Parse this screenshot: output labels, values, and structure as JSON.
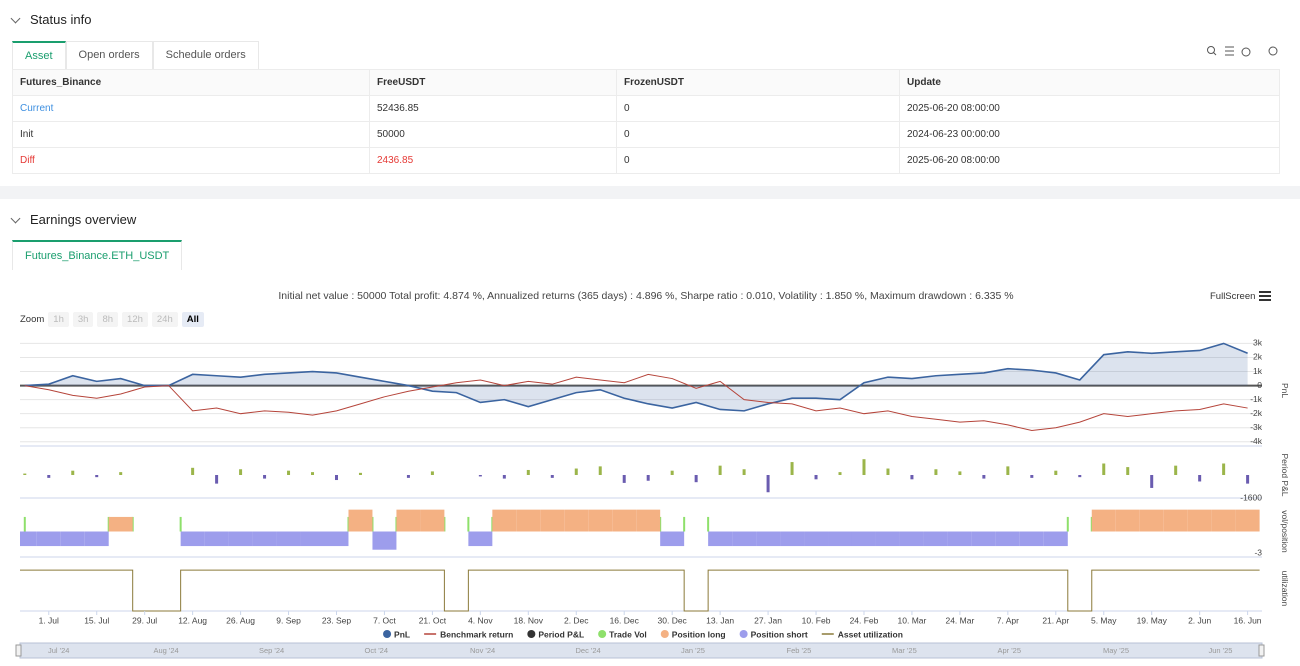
{
  "status": {
    "title": "Status info",
    "tabs": [
      "Asset",
      "Open orders",
      "Schedule orders"
    ],
    "table": {
      "header": [
        "Futures_Binance",
        "FreeUSDT",
        "FrozenUSDT",
        "Update"
      ],
      "rows": [
        [
          "Current",
          "52436.85",
          "0",
          "2025-06-20 08:00:00"
        ],
        [
          "Init",
          "50000",
          "0",
          "2024-06-23 00:00:00"
        ],
        [
          "Diff",
          "2436.85",
          "0",
          "2025-06-20 08:00:00"
        ]
      ]
    }
  },
  "earnings": {
    "title": "Earnings overview",
    "tab": "Futures_Binance.ETH_USDT",
    "summary": "Initial net value : 50000 Total profit: 4.874 %, Annualized returns (365 days) : 4.896 %, Sharpe ratio : 0.010, Volatility : 1.850 %, Maximum drawdown : 6.335 %",
    "fullscreen": "FullScreen",
    "zoom": {
      "label": "Zoom",
      "buttons": [
        "1h",
        "3h",
        "8h",
        "12h",
        "24h",
        "All"
      ]
    },
    "navigator": [
      "Jul '24",
      "Aug '24",
      "Sep '24",
      "Oct '24",
      "Nov '24",
      "Dec '24",
      "Jan '25",
      "Feb '25",
      "Mar '25",
      "Apr '25",
      "May '25",
      "Jun '25"
    ]
  },
  "chart_data": [
    {
      "type": "line",
      "axis_label": "PnL",
      "categories": [
        null,
        "1. Jul",
        null,
        "15. Jul",
        null,
        "29. Jul",
        null,
        "12. Aug",
        null,
        "26. Aug",
        null,
        "9. Sep",
        null,
        "23. Sep",
        null,
        "7. Oct",
        null,
        "21. Oct",
        null,
        "4. Nov",
        null,
        "18. Nov",
        null,
        "2. Dec",
        null,
        "16. Dec",
        null,
        "30. Dec",
        null,
        "13. Jan",
        null,
        "27. Jan",
        null,
        "10. Feb",
        null,
        "24. Feb",
        null,
        "10. Mar",
        null,
        "24. Mar",
        null,
        "7. Apr",
        null,
        "21. Apr",
        null,
        "5. May",
        null,
        "19. May",
        null,
        "2. Jun",
        null,
        "16. Jun"
      ],
      "ylim": [
        -4300,
        3600
      ],
      "yticks": [
        {
          "value": 3000,
          "label": "3k"
        },
        {
          "value": 2000,
          "label": "2k"
        },
        {
          "value": 1000,
          "label": "1k"
        },
        0,
        {
          "value": -1000,
          "label": "-1k"
        },
        {
          "value": -2000,
          "label": "-2k"
        },
        {
          "value": -3000,
          "label": "-3k"
        },
        {
          "value": -4000,
          "label": "-4k"
        }
      ],
      "grid": true,
      "series": [
        {
          "name": "PnL",
          "color": "#3b64a0",
          "area": true,
          "marker": "circle",
          "values": [
            0,
            100,
            700,
            300,
            500,
            0,
            0,
            800,
            700,
            600,
            800,
            900,
            1000,
            900,
            600,
            300,
            0,
            -400,
            -500,
            -1200,
            -1000,
            -1500,
            -1000,
            -500,
            -300,
            -900,
            -1300,
            -1600,
            -1200,
            -1700,
            -1800,
            -1300,
            -900,
            -900,
            -1000,
            200,
            600,
            500,
            700,
            800,
            900,
            1200,
            1100,
            900,
            400,
            2200,
            2400,
            2300,
            2400,
            2500,
            3000,
            2300
          ]
        },
        {
          "name": "Benchmark return",
          "color": "#b5443a",
          "marker": "line",
          "values": [
            0,
            -300,
            -700,
            -900,
            -600,
            -100,
            0,
            -1800,
            -1600,
            -2000,
            -1800,
            -1900,
            -2100,
            -1800,
            -1300,
            -800,
            -400,
            -100,
            200,
            400,
            0,
            300,
            100,
            600,
            400,
            200,
            800,
            500,
            -200,
            300,
            -1000,
            -1200,
            -1300,
            -1800,
            -1600,
            -2000,
            -1800,
            -2200,
            -2400,
            -2600,
            -2500,
            -2800,
            -3200,
            -3000,
            -2600,
            -2000,
            -2200,
            -2000,
            -1800,
            -1700,
            -1300,
            -1600
          ]
        }
      ]
    },
    {
      "type": "bar",
      "axis_label": "Period P&L",
      "ylim": [
        -1600,
        1600
      ],
      "yticks": [
        -1600
      ],
      "series": [
        {
          "name": "Period P&L",
          "color": "#333333",
          "positive_color": "#9bb54a",
          "negative_color": "#6a5cb0",
          "marker": "circle",
          "values": [
            100,
            -200,
            300,
            -150,
            200,
            0,
            0,
            500,
            -600,
            400,
            -250,
            300,
            200,
            -350,
            150,
            0,
            -200,
            250,
            0,
            -100,
            -250,
            350,
            -200,
            450,
            600,
            -550,
            -400,
            300,
            -500,
            650,
            400,
            -1200,
            900,
            -300,
            200,
            1100,
            450,
            -300,
            400,
            250,
            -250,
            600,
            -200,
            300,
            -150,
            800,
            550,
            -900,
            650,
            -450,
            800,
            -600
          ]
        }
      ]
    },
    {
      "type": "bar",
      "axis_label": "vol/position",
      "ylim": [
        -3.5,
        3.5
      ],
      "yticks": [
        -3
      ],
      "series": [
        {
          "name": "Trade Vol",
          "color": "#8ee06b",
          "marker": "circle",
          "thin": true,
          "values": [
            2,
            0,
            0,
            0,
            2,
            2,
            0,
            2,
            0,
            0,
            0,
            0,
            0,
            0,
            2,
            2,
            2,
            0,
            2,
            2,
            2,
            0,
            0,
            0,
            0,
            0,
            0,
            2,
            2,
            2,
            0,
            0,
            0,
            0,
            0,
            0,
            0,
            0,
            0,
            0,
            0,
            0,
            0,
            0,
            2,
            2,
            0,
            0,
            0,
            0,
            0,
            0
          ]
        },
        {
          "name": "Position long",
          "color": "#f4b183",
          "marker": "circle",
          "values": [
            0,
            0,
            0,
            0,
            2,
            0,
            0,
            0,
            0,
            0,
            0,
            0,
            0,
            0,
            3,
            0,
            3,
            3,
            0,
            0,
            3,
            3,
            3,
            3,
            3,
            3,
            3,
            0,
            0,
            0,
            0,
            0,
            0,
            0,
            0,
            0,
            0,
            0,
            0,
            0,
            0,
            0,
            0,
            0,
            0,
            3,
            3,
            3,
            3,
            3,
            3,
            3
          ]
        },
        {
          "name": "Position short",
          "color": "#9d9dec",
          "marker": "circle",
          "values": [
            -2,
            -2,
            -2,
            -2,
            0,
            0,
            0,
            -2,
            -2,
            -2,
            -2,
            -2,
            -2,
            -2,
            0,
            -2.5,
            0,
            0,
            0,
            -2,
            0,
            0,
            0,
            0,
            0,
            0,
            0,
            -2,
            0,
            -2,
            -2,
            -2,
            -2,
            -2,
            -2,
            -2,
            -2,
            -2,
            -2,
            -2,
            -2,
            -2,
            -2,
            -2,
            0,
            0,
            0,
            0,
            0,
            0,
            0,
            0
          ]
        }
      ]
    },
    {
      "type": "line",
      "axis_label": "utilization",
      "ylim": [
        0,
        1.1
      ],
      "step": true,
      "series": [
        {
          "name": "Asset utilization",
          "color": "#8b7a3a",
          "marker": "line",
          "values": [
            1,
            1,
            1,
            1,
            1,
            0,
            0,
            1,
            1,
            1,
            1,
            1,
            1,
            1,
            1,
            1,
            1,
            1,
            0,
            1,
            1,
            1,
            1,
            1,
            1,
            1,
            1,
            1,
            0,
            1,
            1,
            1,
            1,
            1,
            1,
            1,
            1,
            1,
            1,
            1,
            1,
            1,
            1,
            1,
            0,
            1,
            1,
            1,
            1,
            1,
            1,
            1
          ]
        }
      ]
    }
  ]
}
